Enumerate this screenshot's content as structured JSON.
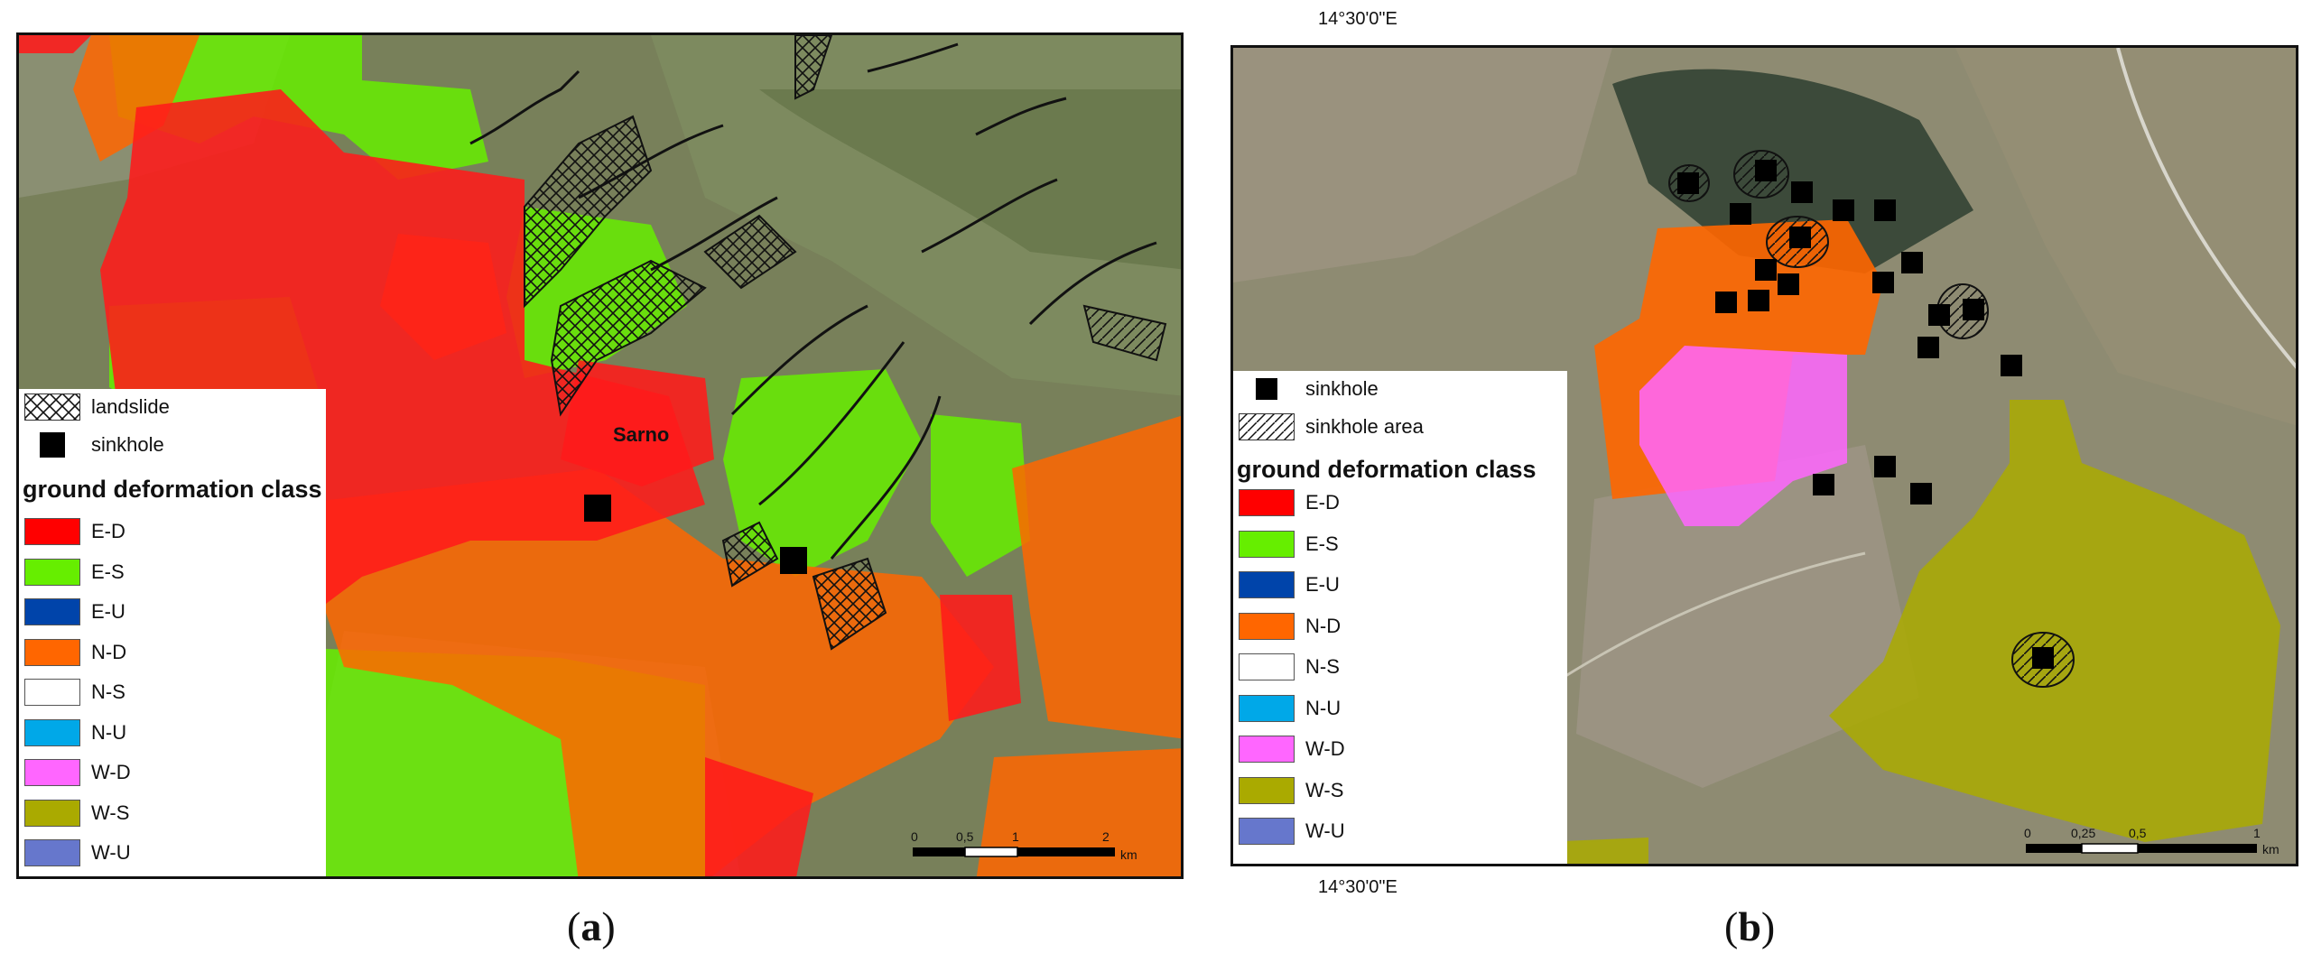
{
  "panel_a": {
    "place_label": "Sarno",
    "legend": {
      "landslide": "landslide",
      "sinkhole": "sinkhole",
      "title": "ground deformation class",
      "classes": [
        {
          "label": "E-D",
          "color": "#ff0000"
        },
        {
          "label": "E-S",
          "color": "#66ee00"
        },
        {
          "label": "E-U",
          "color": "#0044aa"
        },
        {
          "label": "N-D",
          "color": "#ff6600"
        },
        {
          "label": "N-S",
          "color": "#ffffff"
        },
        {
          "label": "N-U",
          "color": "#00a8e8"
        },
        {
          "label": "W-D",
          "color": "#ff66ff"
        },
        {
          "label": "W-S",
          "color": "#aaaa00"
        },
        {
          "label": "W-U",
          "color": "#6677cc"
        }
      ]
    },
    "scale": {
      "ticks": [
        "0",
        "0,5",
        "1",
        "2"
      ],
      "unit": "km"
    },
    "caption_open": "(",
    "caption_letter": "a",
    "caption_close": ")"
  },
  "panel_b": {
    "top_coord": "14°30'0\"E",
    "bottom_coord": "14°30'0\"E",
    "legend": {
      "sinkhole": "sinkhole",
      "sinkhole_area": "sinkhole area",
      "title": "ground deformation class",
      "classes": [
        {
          "label": "E-D",
          "color": "#ff0000"
        },
        {
          "label": "E-S",
          "color": "#66ee00"
        },
        {
          "label": "E-U",
          "color": "#0044aa"
        },
        {
          "label": "N-D",
          "color": "#ff6600"
        },
        {
          "label": "N-S",
          "color": "#ffffff"
        },
        {
          "label": "N-U",
          "color": "#00a8e8"
        },
        {
          "label": "W-D",
          "color": "#ff66ff"
        },
        {
          "label": "W-S",
          "color": "#aaaa00"
        },
        {
          "label": "W-U",
          "color": "#6677cc"
        }
      ]
    },
    "scale": {
      "ticks": [
        "0",
        "0,25",
        "0,5",
        "1"
      ],
      "unit": "km"
    },
    "caption_open": "(",
    "caption_letter": "b",
    "caption_close": ")"
  }
}
